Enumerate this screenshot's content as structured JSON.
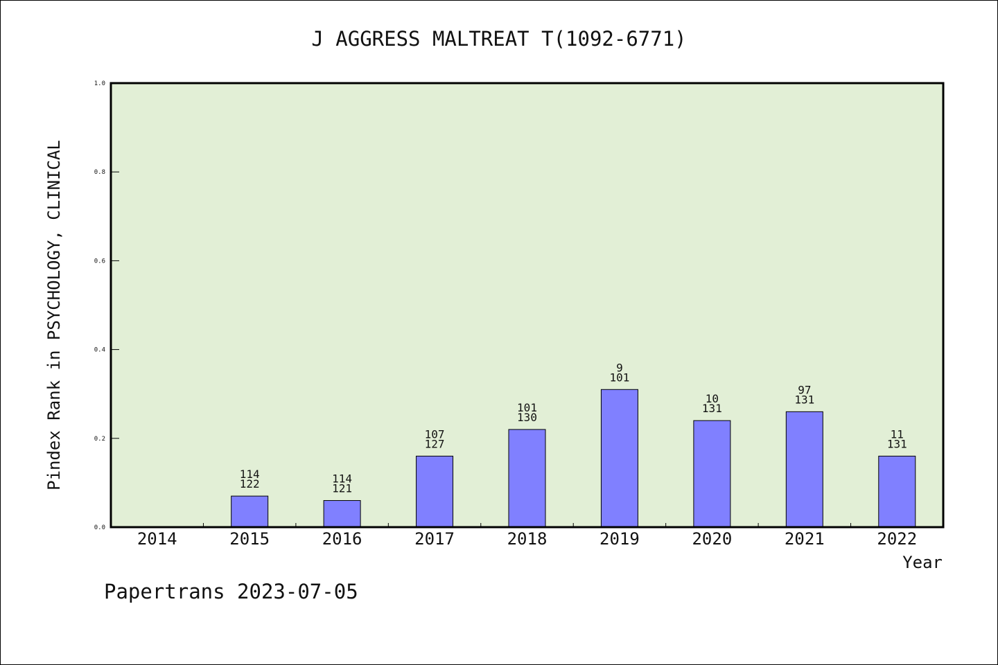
{
  "chart_data": {
    "type": "bar",
    "title": "J AGGRESS MALTREAT T(1092-6771)",
    "xlabel": "Year",
    "ylabel": "Pindex Rank in PSYCHOLOGY, CLINICAL",
    "ylim": [
      0,
      1.0
    ],
    "yticks": [
      "0.0",
      "0.2",
      "0.4",
      "0.6",
      "0.8",
      "1.0"
    ],
    "categories": [
      "2014",
      "2015",
      "2016",
      "2017",
      "2018",
      "2019",
      "2020",
      "2021",
      "2022"
    ],
    "values": [
      null,
      0.07,
      0.06,
      0.16,
      0.22,
      0.31,
      0.24,
      0.26,
      0.16
    ],
    "rank_labels": [
      "",
      "114",
      "114",
      "107",
      "101",
      "9",
      "10",
      "97",
      "11"
    ],
    "total_labels": [
      "",
      "122",
      "121",
      "127",
      "130",
      "101",
      "131",
      "131",
      "131"
    ],
    "grid": false,
    "colors": {
      "bar": "#8080ff",
      "plot_bg": "#e2efd6",
      "axis": "#000000"
    }
  },
  "footer": "Papertrans 2023-07-05"
}
